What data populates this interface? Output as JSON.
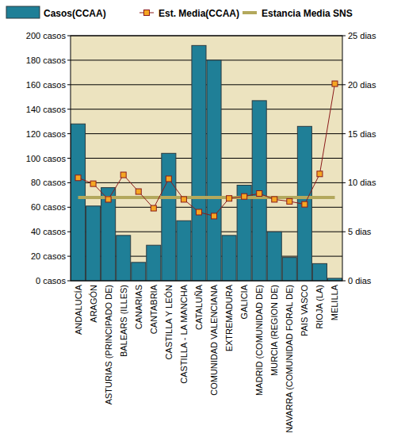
{
  "chart_data": {
    "type": "bar",
    "categories": [
      "ANDALUCÍA",
      "ARAGÓN",
      "ASTURIAS (PRINCIPADO DE)",
      "BALEARS (ILLES)",
      "CANARIAS",
      "CANTABRIA",
      "CASTILLA Y LEÓN",
      "CASTILLA - LA MANCHA",
      "CATALUÑA",
      "COMUNIDAD VALENCIANA",
      "EXTREMADURA",
      "GALICIA",
      "MADRID (COMUNIDAD DE)",
      "MURCIA (REGION DE)",
      "NAVARRA (COMUNIDAD FORAL DE)",
      "PAIS VASCO",
      "RIOJA (LA)",
      "MELILLA"
    ],
    "series": [
      {
        "name": "Casos(CCAA)",
        "type": "bar",
        "color": "#1f7f97",
        "values": [
          128,
          61,
          76,
          37,
          15,
          29,
          104,
          49,
          192,
          180,
          37,
          78,
          147,
          40,
          19,
          126,
          14,
          2
        ]
      },
      {
        "name": "Est. Media(CCAA)",
        "type": "line",
        "axis": "y2",
        "color": "#8b1a1a",
        "marker": "square",
        "values": [
          10.5,
          9.9,
          8.3,
          10.8,
          9.1,
          7.4,
          10.4,
          8.3,
          7.0,
          6.6,
          8.4,
          8.6,
          8.9,
          8.3,
          8.1,
          7.8,
          10.9,
          20.1
        ]
      },
      {
        "name": "Estancia Media SNS",
        "type": "line",
        "axis": "y2",
        "color": "#b3a85c",
        "marker": "none",
        "values": [
          8.5,
          8.5,
          8.5,
          8.5,
          8.5,
          8.5,
          8.5,
          8.5,
          8.5,
          8.5,
          8.5,
          8.5,
          8.5,
          8.5,
          8.5,
          8.5,
          8.5,
          8.5
        ]
      }
    ],
    "ylim": [
      0,
      200
    ],
    "yticks": [
      {
        "value": 0,
        "label": "0 casos"
      },
      {
        "value": 20,
        "label": "20 casos"
      },
      {
        "value": 40,
        "label": "40 casos"
      },
      {
        "value": 60,
        "label": "60 casos"
      },
      {
        "value": 80,
        "label": "80 casos"
      },
      {
        "value": 100,
        "label": "100 casos"
      },
      {
        "value": 120,
        "label": "120 casos"
      },
      {
        "value": 140,
        "label": "140 casos"
      },
      {
        "value": 160,
        "label": "160 casos"
      },
      {
        "value": 180,
        "label": "180 casos"
      },
      {
        "value": 200,
        "label": "200 casos"
      }
    ],
    "y2lim": [
      0,
      25
    ],
    "y2ticks": [
      {
        "value": 0,
        "label": "0 dias"
      },
      {
        "value": 5,
        "label": "5 dias"
      },
      {
        "value": 10,
        "label": "10 dias"
      },
      {
        "value": 15,
        "label": "15 dias"
      },
      {
        "value": 20,
        "label": "20 dias"
      },
      {
        "value": 25,
        "label": "25 dias"
      }
    ],
    "grid": true,
    "legend": "top"
  }
}
